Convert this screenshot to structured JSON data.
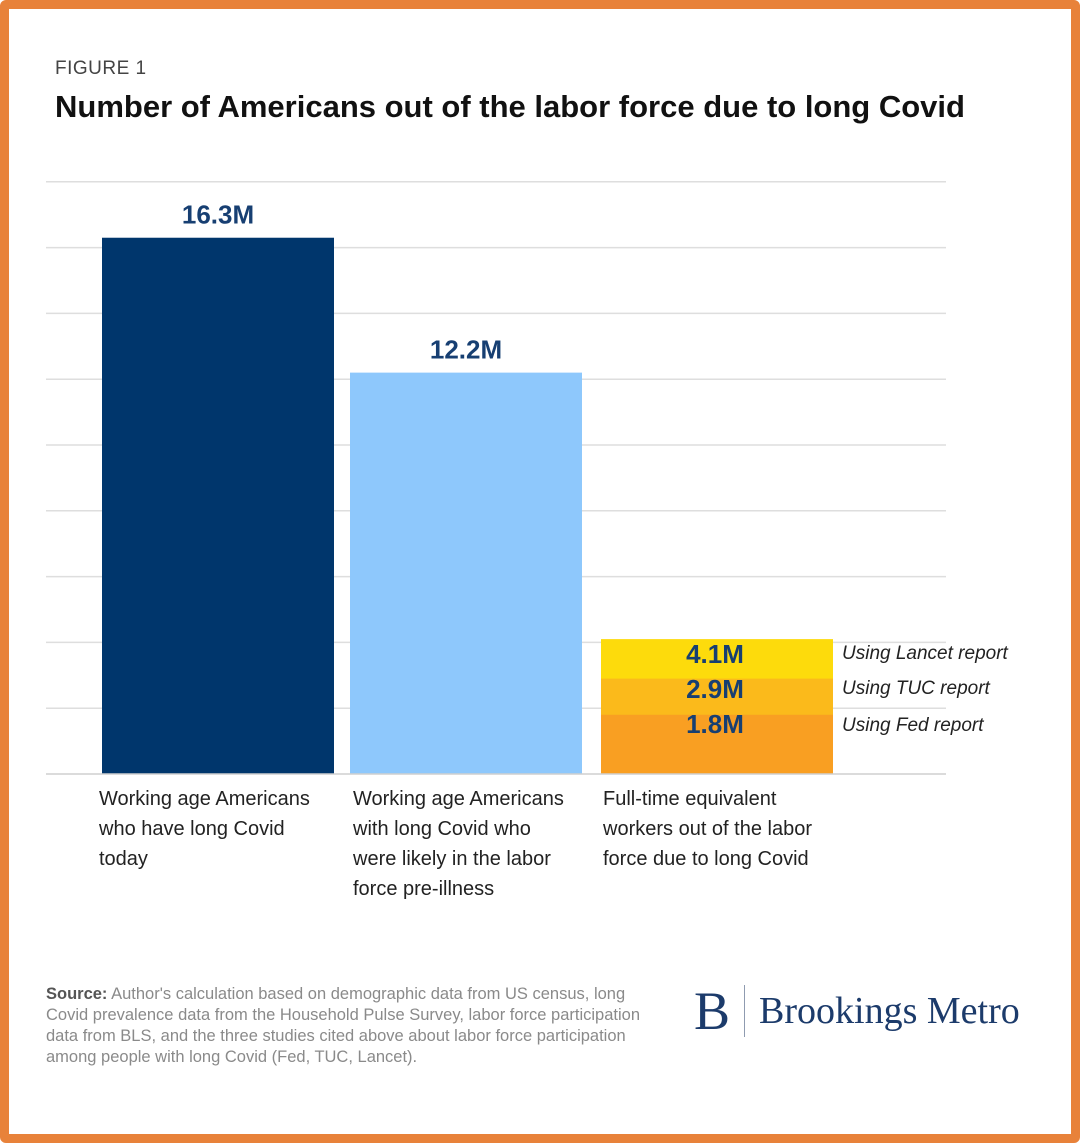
{
  "figure_label": "FIGURE 1",
  "title": "Number of Americans out of the labor force due to long Covid",
  "chart_data": {
    "type": "bar",
    "title": "Number of Americans out of the labor force due to long Covid",
    "unit": "M",
    "ylim": [
      0,
      18
    ],
    "grid": true,
    "categories": [
      "Working age Americans who have long Covid today",
      "Working age Americans with long Covid who were likely in the labor force pre-illness",
      "Full-time equivalent workers out of the labor force due to long Covid"
    ],
    "bars": [
      {
        "value": 16.3,
        "label": "16.3M",
        "color": "#00366c"
      },
      {
        "value": 12.2,
        "label": "12.2M",
        "color": "#8ec8fc"
      }
    ],
    "stacked_estimates": [
      {
        "value": 4.1,
        "label": "4.1M",
        "annotation": "Using Lancet report",
        "color": "#fddb0c"
      },
      {
        "value": 2.9,
        "label": "2.9M",
        "annotation": "Using TUC report",
        "color": "#fbba1b"
      },
      {
        "value": 1.8,
        "label": "1.8M",
        "annotation": "Using Fed report",
        "color": "#f99f22"
      }
    ],
    "value_label_color": "#173f72",
    "grid_color": "#dedede"
  },
  "category_label_lines": [
    [
      "Working age Americans",
      "who have long Covid",
      "today"
    ],
    [
      "Working age Americans",
      "with long Covid who",
      "were likely in the labor",
      "force pre-illness"
    ],
    [
      "Full-time equivalent",
      "workers out of the labor",
      "force due to long Covid"
    ]
  ],
  "source": {
    "label": "Source:",
    "text": " Author's calculation based on demographic data from US census, long Covid prevalence data from the Household Pulse Survey, labor force participation data from BLS, and the three studies cited above about labor force participation among people with long Covid (Fed, TUC, Lancet)."
  },
  "logo": {
    "mark": "B",
    "text": "Brookings Metro"
  }
}
